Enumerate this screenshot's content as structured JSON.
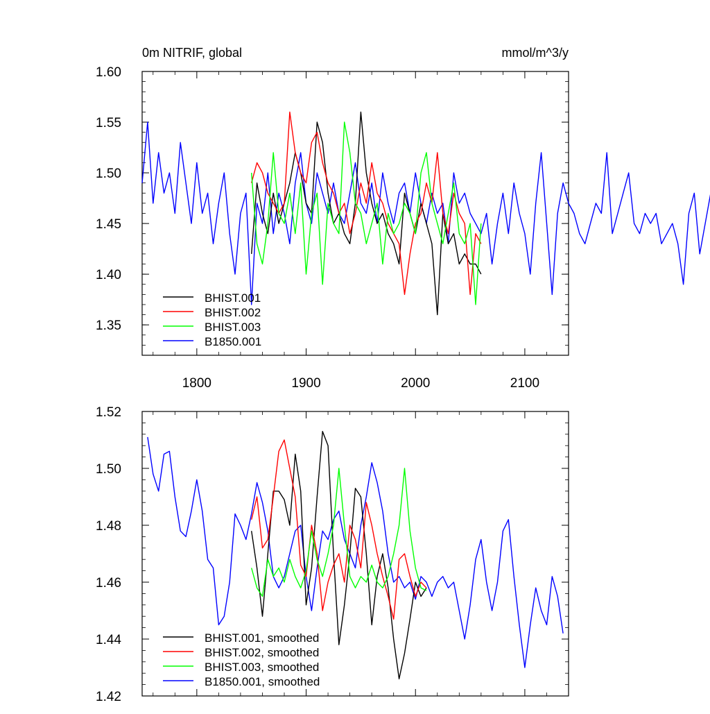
{
  "chart_data": [
    {
      "type": "line",
      "title": "0m NITRIF, global",
      "units": "mmol/m^3/y",
      "xlim": [
        1750,
        2140
      ],
      "ylim": [
        1.32,
        1.6
      ],
      "xticks": [
        1800,
        1900,
        2000,
        2100
      ],
      "xtick_labels": [
        "1800",
        "1900",
        "2000",
        "2100"
      ],
      "yticks": [
        1.35,
        1.4,
        1.45,
        1.5,
        1.55,
        1.6
      ],
      "ytick_labels": [
        "1.35",
        "1.40",
        "1.45",
        "1.50",
        "1.55",
        "1.60"
      ],
      "legend_position": "bottom-left",
      "grid": false,
      "series": [
        {
          "name": "BHIST.001",
          "color": "#000000",
          "x_start": 1850,
          "x_step": 5,
          "values": [
            1.42,
            1.49,
            1.46,
            1.44,
            1.48,
            1.45,
            1.47,
            1.49,
            1.52,
            1.5,
            1.47,
            1.46,
            1.55,
            1.53,
            1.48,
            1.45,
            1.46,
            1.44,
            1.43,
            1.47,
            1.56,
            1.5,
            1.47,
            1.45,
            1.46,
            1.44,
            1.43,
            1.41,
            1.48,
            1.46,
            1.44,
            1.47,
            1.45,
            1.43,
            1.36,
            1.46,
            1.43,
            1.44,
            1.41,
            1.42,
            1.41,
            1.41,
            1.4
          ]
        },
        {
          "name": "BHIST.002",
          "color": "#ff0000",
          "x_start": 1850,
          "x_step": 5,
          "values": [
            1.49,
            1.51,
            1.5,
            1.48,
            1.47,
            1.46,
            1.47,
            1.56,
            1.52,
            1.5,
            1.49,
            1.53,
            1.54,
            1.51,
            1.49,
            1.48,
            1.46,
            1.47,
            1.44,
            1.46,
            1.49,
            1.47,
            1.51,
            1.48,
            1.47,
            1.45,
            1.44,
            1.43,
            1.38,
            1.42,
            1.45,
            1.46,
            1.49,
            1.47,
            1.52,
            1.46,
            1.44,
            1.48,
            1.46,
            1.45,
            1.38,
            1.44,
            1.43
          ]
        },
        {
          "name": "BHIST.003",
          "color": "#00ff00",
          "x_start": 1850,
          "x_step": 5,
          "values": [
            1.5,
            1.43,
            1.41,
            1.45,
            1.52,
            1.46,
            1.45,
            1.48,
            1.44,
            1.49,
            1.4,
            1.46,
            1.48,
            1.39,
            1.47,
            1.45,
            1.44,
            1.55,
            1.52,
            1.47,
            1.46,
            1.43,
            1.45,
            1.47,
            1.41,
            1.46,
            1.44,
            1.45,
            1.47,
            1.46,
            1.44,
            1.5,
            1.52,
            1.47,
            1.45,
            1.43,
            1.46,
            1.49,
            1.44,
            1.43,
            1.45,
            1.37,
            1.45
          ]
        },
        {
          "name": "B1850.001",
          "color": "#0000ff",
          "x_start": 1750,
          "x_step": 5,
          "values": [
            1.49,
            1.55,
            1.47,
            1.52,
            1.48,
            1.5,
            1.46,
            1.53,
            1.49,
            1.45,
            1.51,
            1.46,
            1.48,
            1.43,
            1.47,
            1.5,
            1.44,
            1.4,
            1.46,
            1.48,
            1.37,
            1.47,
            1.45,
            1.5,
            1.44,
            1.48,
            1.46,
            1.43,
            1.49,
            1.52,
            1.47,
            1.45,
            1.5,
            1.48,
            1.46,
            1.49,
            1.46,
            1.45,
            1.48,
            1.51,
            1.47,
            1.46,
            1.49,
            1.45,
            1.5,
            1.47,
            1.45,
            1.48,
            1.49,
            1.46,
            1.5,
            1.47,
            1.45,
            1.48,
            1.46,
            1.47,
            1.43,
            1.5,
            1.47,
            1.48,
            1.46,
            1.45,
            1.44,
            1.46,
            1.41,
            1.45,
            1.48,
            1.44,
            1.49,
            1.46,
            1.44,
            1.4,
            1.47,
            1.52,
            1.45,
            1.38,
            1.46,
            1.49,
            1.47,
            1.46,
            1.44,
            1.43,
            1.45,
            1.47,
            1.46,
            1.52,
            1.44,
            1.46,
            1.48,
            1.5,
            1.45,
            1.44,
            1.46,
            1.45,
            1.46,
            1.43,
            1.44,
            1.45,
            1.43,
            1.39,
            1.46,
            1.48,
            1.42,
            1.45,
            1.48,
            1.51,
            1.45,
            1.44,
            1.46,
            1.5,
            1.52,
            1.43,
            1.38,
            1.44,
            1.46,
            1.47,
            1.48,
            1.52,
            1.46,
            1.44,
            1.43,
            1.45,
            1.44,
            1.42,
            1.43,
            1.46,
            1.45,
            1.47,
            1.44,
            1.42,
            1.43,
            1.45,
            1.44,
            1.46,
            1.45,
            1.44,
            1.43,
            1.46,
            1.44,
            1.45,
            1.46,
            1.44,
            1.45,
            1.46,
            1.44,
            1.43,
            1.45,
            1.42,
            1.46,
            1.45,
            1.44,
            1.43,
            1.45,
            1.46,
            1.44,
            1.45,
            1.43,
            1.46,
            1.44,
            1.45,
            1.43,
            1.45,
            1.44,
            1.46,
            1.45,
            1.44,
            1.45,
            1.44,
            1.46,
            1.45,
            1.44,
            1.43,
            1.46,
            1.45,
            1.44,
            1.42,
            1.45
          ]
        }
      ]
    },
    {
      "type": "line",
      "xlim": [
        1750,
        2140
      ],
      "ylim": [
        1.42,
        1.52
      ],
      "yticks": [
        1.42,
        1.44,
        1.46,
        1.48,
        1.5,
        1.52
      ],
      "ytick_labels": [
        "1.42",
        "1.44",
        "1.46",
        "1.48",
        "1.50",
        "1.52"
      ],
      "xticks": [
        1800,
        1900,
        2000,
        2100
      ],
      "legend_position": "bottom-left",
      "grid": false,
      "series": [
        {
          "name": "BHIST.001, smoothed",
          "color": "#000000",
          "x": [
            1850,
            1855,
            1860,
            1865,
            1870,
            1875,
            1880,
            1885,
            1890,
            1895,
            1900,
            1905,
            1910,
            1915,
            1920,
            1925,
            1930,
            1935,
            1940,
            1945,
            1950,
            1955,
            1960,
            1965,
            1970,
            1975,
            1980,
            1985,
            1990,
            1995,
            2000,
            2005,
            2010
          ],
          "values": [
            1.478,
            1.465,
            1.448,
            1.47,
            1.492,
            1.492,
            1.489,
            1.48,
            1.505,
            1.492,
            1.452,
            1.465,
            1.49,
            1.513,
            1.508,
            1.47,
            1.438,
            1.452,
            1.47,
            1.493,
            1.49,
            1.47,
            1.445,
            1.462,
            1.47,
            1.458,
            1.44,
            1.426,
            1.435,
            1.447,
            1.46,
            1.455,
            1.458
          ]
        },
        {
          "name": "BHIST.002, smoothed",
          "color": "#ff0000",
          "x": [
            1850,
            1855,
            1860,
            1865,
            1870,
            1875,
            1880,
            1885,
            1890,
            1895,
            1900,
            1905,
            1910,
            1915,
            1920,
            1925,
            1930,
            1935,
            1940,
            1945,
            1950,
            1955,
            1960,
            1965,
            1970,
            1975,
            1980,
            1985,
            1990,
            1995,
            2000,
            2005,
            2010
          ],
          "values": [
            1.482,
            1.49,
            1.472,
            1.475,
            1.49,
            1.506,
            1.51,
            1.5,
            1.49,
            1.466,
            1.462,
            1.48,
            1.47,
            1.45,
            1.46,
            1.466,
            1.47,
            1.46,
            1.48,
            1.475,
            1.465,
            1.488,
            1.48,
            1.47,
            1.462,
            1.455,
            1.447,
            1.468,
            1.47,
            1.462,
            1.455,
            1.46,
            1.458
          ]
        },
        {
          "name": "BHIST.003, smoothed",
          "color": "#00ff00",
          "x": [
            1850,
            1855,
            1860,
            1865,
            1870,
            1875,
            1880,
            1885,
            1890,
            1895,
            1900,
            1905,
            1910,
            1915,
            1920,
            1925,
            1930,
            1935,
            1940,
            1945,
            1950,
            1955,
            1960,
            1965,
            1970,
            1975,
            1980,
            1985,
            1990,
            1995,
            2000,
            2005,
            2010
          ],
          "values": [
            1.465,
            1.458,
            1.455,
            1.468,
            1.462,
            1.465,
            1.46,
            1.468,
            1.462,
            1.458,
            1.464,
            1.478,
            1.468,
            1.462,
            1.47,
            1.48,
            1.5,
            1.48,
            1.462,
            1.458,
            1.462,
            1.46,
            1.466,
            1.46,
            1.458,
            1.462,
            1.47,
            1.48,
            1.5,
            1.478,
            1.465,
            1.458,
            1.457
          ]
        },
        {
          "name": "B1850.001, smoothed",
          "color": "#0000ff",
          "x": [
            1755,
            1760,
            1765,
            1770,
            1775,
            1780,
            1785,
            1790,
            1795,
            1800,
            1805,
            1810,
            1815,
            1820,
            1825,
            1830,
            1835,
            1840,
            1845,
            1850,
            1855,
            1860,
            1865,
            1870,
            1875,
            1880,
            1885,
            1890,
            1895,
            1900,
            1905,
            1910,
            1915,
            1920,
            1925,
            1930,
            1935,
            1940,
            1945,
            1950,
            1955,
            1960,
            1965,
            1970,
            1975,
            1980,
            1985,
            1990,
            1995,
            2000,
            2005,
            2010,
            2015,
            2020,
            2025,
            2030,
            2035,
            2040,
            2045,
            2050,
            2055,
            2060,
            2065,
            2070,
            2075,
            2080,
            2085,
            2090,
            2095,
            2100,
            2105,
            2110,
            2115,
            2120,
            2125,
            2130,
            2135
          ],
          "values": [
            1.511,
            1.498,
            1.492,
            1.505,
            1.506,
            1.49,
            1.478,
            1.476,
            1.485,
            1.496,
            1.485,
            1.468,
            1.465,
            1.445,
            1.448,
            1.46,
            1.484,
            1.48,
            1.475,
            1.484,
            1.495,
            1.488,
            1.478,
            1.462,
            1.458,
            1.462,
            1.47,
            1.478,
            1.48,
            1.462,
            1.45,
            1.465,
            1.478,
            1.475,
            1.482,
            1.485,
            1.475,
            1.47,
            1.465,
            1.48,
            1.49,
            1.502,
            1.495,
            1.485,
            1.47,
            1.46,
            1.462,
            1.458,
            1.46,
            1.454,
            1.462,
            1.46,
            1.455,
            1.46,
            1.462,
            1.458,
            1.46,
            1.45,
            1.44,
            1.452,
            1.468,
            1.475,
            1.46,
            1.45,
            1.46,
            1.478,
            1.482,
            1.462,
            1.445,
            1.43,
            1.445,
            1.458,
            1.45,
            1.445,
            1.462,
            1.455,
            1.442
          ]
        }
      ]
    }
  ]
}
